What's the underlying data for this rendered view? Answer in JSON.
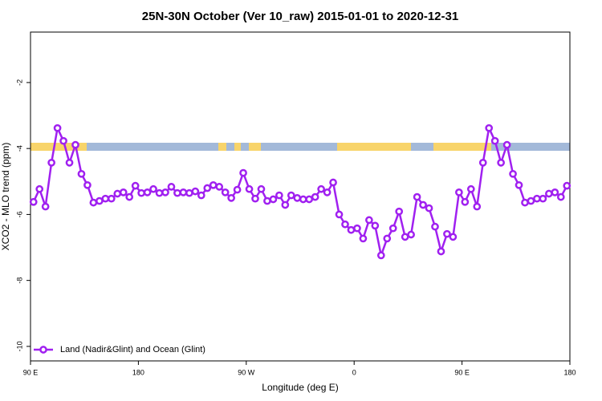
{
  "chart_data": {
    "type": "line",
    "title": "25N-30N October (Ver 10_raw)   2015-01-01 to 2020-12-31",
    "xlabel": "Longitude (deg E)",
    "ylabel": "XCO2 - MLO trend (ppm)",
    "x": [
      92.5,
      97.5,
      102.5,
      107.5,
      112.5,
      117.5,
      122.5,
      127.5,
      132.5,
      137.5,
      142.5,
      147.5,
      152.5,
      157.5,
      162.5,
      167.5,
      172.5,
      177.5,
      182.5,
      187.5,
      192.5,
      197.5,
      202.5,
      207.5,
      212.5,
      217.5,
      222.5,
      227.5,
      232.5,
      237.5,
      242.5,
      247.5,
      252.5,
      257.5,
      262.5,
      267.5,
      272.5,
      277.5,
      282.5,
      287.5,
      292.5,
      297.5,
      302.5,
      307.5,
      312.5,
      317.5,
      322.5,
      327.5,
      332.5,
      337.5,
      342.5,
      347.5,
      352.5,
      357.5,
      362.5,
      367.5,
      372.5,
      377.5,
      382.5,
      387.5,
      392.5,
      397.5,
      402.5,
      407.5,
      412.5,
      417.5,
      422.5,
      427.5,
      432.5,
      437.5,
      442.5,
      447.5,
      452.5,
      457.5,
      462.5,
      467.5,
      472.5,
      477.5,
      482.5,
      487.5,
      492.5,
      497.5,
      502.5,
      507.5,
      512.5,
      517.5,
      522.5,
      527.5,
      532.5,
      537.5
    ],
    "series": [
      {
        "name": "Land (Nadir&Glint) and Ocean (Glint)",
        "color": "#a020f0",
        "values": [
          -5.62,
          -5.23,
          -5.76,
          -4.43,
          -3.38,
          -3.77,
          -4.43,
          -3.89,
          -4.77,
          -5.11,
          -5.64,
          -5.59,
          -5.52,
          -5.52,
          -5.37,
          -5.33,
          -5.47,
          -5.13,
          -5.35,
          -5.33,
          -5.23,
          -5.35,
          -5.33,
          -5.16,
          -5.35,
          -5.33,
          -5.35,
          -5.3,
          -5.42,
          -5.2,
          -5.11,
          -5.16,
          -5.33,
          -5.5,
          -5.25,
          -4.74,
          -5.23,
          -5.52,
          -5.23,
          -5.59,
          -5.54,
          -5.42,
          -5.71,
          -5.42,
          -5.5,
          -5.54,
          -5.54,
          -5.47,
          -5.23,
          -5.33,
          -5.03,
          -6.0,
          -6.3,
          -6.47,
          -6.42,
          -6.73,
          -6.17,
          -6.34,
          -7.24,
          -6.73,
          -6.42,
          -5.91,
          -6.68,
          -6.61,
          -5.47,
          -5.71,
          -5.81,
          -6.37,
          -7.12,
          -6.59,
          -6.68,
          -5.33,
          -5.62,
          -5.23,
          -5.76,
          -4.43,
          -3.38,
          -3.77,
          -4.43,
          -3.89,
          -4.77,
          -5.11,
          -5.64,
          -5.59,
          -5.52,
          -5.52,
          -5.37,
          -5.33,
          -5.47,
          -5.13
        ]
      }
    ],
    "xlim": [
      90,
      540
    ],
    "xticks": [
      {
        "value": 90,
        "label": "90 E"
      },
      180,
      {
        "value": 270,
        "label": "90 W"
      },
      0,
      {
        "value": 450,
        "label": "90 E"
      },
      {
        "value": 540,
        "label": "180"
      }
    ],
    "ylim": [
      -10.44,
      -0.47
    ],
    "yticks": [
      -10,
      -8,
      -6,
      -4,
      -2
    ],
    "legend": "bottom-left"
  }
}
